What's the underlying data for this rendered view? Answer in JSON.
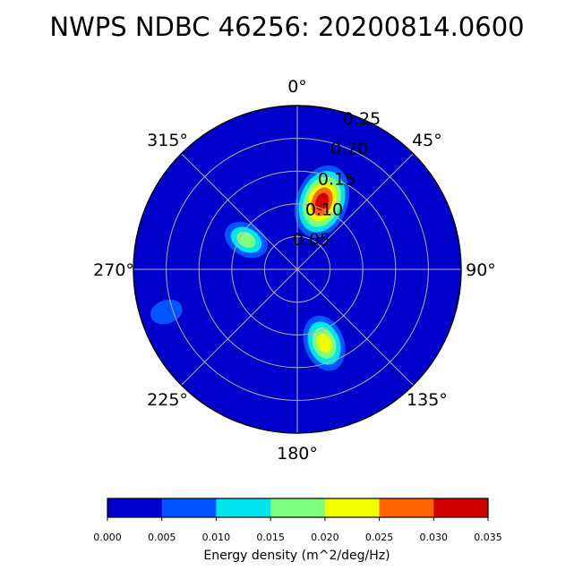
{
  "title": "NWPS NDBC 46256: 20200814.0600",
  "chart_data": {
    "type": "polar_contour",
    "title": "NWPS NDBC 46256: 20200814.0600",
    "theta_direction": "clockwise",
    "theta_zero": "north",
    "angle_labels": [
      "0°",
      "45°",
      "90°",
      "135°",
      "180°",
      "225°",
      "270°",
      "315°"
    ],
    "angles_deg": [
      0,
      45,
      90,
      135,
      180,
      225,
      270,
      315
    ],
    "radial_ticks": [
      0.05,
      0.1,
      0.15,
      0.2,
      0.25
    ],
    "radial_labels": [
      "0.05",
      "0.10",
      "0.15",
      "0.20",
      "0.25"
    ],
    "radial_label_angle_deg": 22.5,
    "r_max": 0.25,
    "grid": true,
    "colorbar": {
      "label": "Energy density (m^2/deg/Hz)",
      "levels": [
        0.0,
        0.005,
        0.01,
        0.015,
        0.02,
        0.025,
        0.03,
        0.035
      ],
      "tick_labels": [
        "0.000",
        "0.005",
        "0.010",
        "0.015",
        "0.020",
        "0.025",
        "0.030",
        "0.035"
      ],
      "colors": [
        "#0000cd",
        "#0055ff",
        "#00e5ee",
        "#7fff7f",
        "#f0ff00",
        "#ff6600",
        "#d00000"
      ]
    },
    "energy_peaks": [
      {
        "direction_deg": 20,
        "frequency": 0.11,
        "max_energy": 0.033
      },
      {
        "direction_deg": 300,
        "frequency": 0.09,
        "max_energy": 0.015
      },
      {
        "direction_deg": 160,
        "frequency": 0.12,
        "max_energy": 0.022
      },
      {
        "direction_deg": 252,
        "frequency": 0.21,
        "max_energy": 0.007
      }
    ]
  }
}
